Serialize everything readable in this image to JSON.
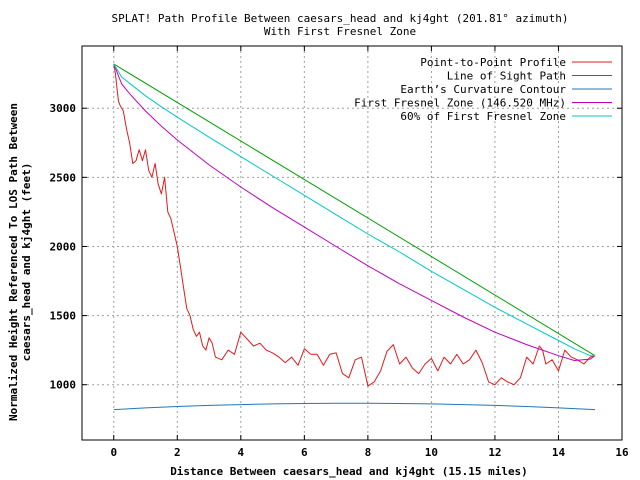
{
  "chart_data": {
    "type": "line",
    "title": "SPLAT! Path Profile Between caesars_head and kj4ght (201.81° azimuth)",
    "subtitle": "With First Fresnel Zone",
    "xlabel": "Distance Between caesars_head and kj4ght (15.15 miles)",
    "ylabel_line1": "Normalized Height Referenced To LOS Path Between",
    "ylabel_line2": "caesars_head and kj4ght (feet)",
    "xlim": [
      -1,
      16
    ],
    "ylim": [
      600,
      3450
    ],
    "x_ticks": [
      0,
      2,
      4,
      6,
      8,
      10,
      12,
      14,
      16
    ],
    "y_ticks": [
      1000,
      1500,
      2000,
      2500,
      3000
    ],
    "grid": true,
    "legend_position": "top-right",
    "series": [
      {
        "name": "Point-to-Point Profile",
        "color": "#e41a1c",
        "x": [
          0,
          0.05,
          0.1,
          0.15,
          0.2,
          0.3,
          0.4,
          0.5,
          0.6,
          0.7,
          0.8,
          0.9,
          1.0,
          1.1,
          1.2,
          1.3,
          1.4,
          1.5,
          1.6,
          1.7,
          1.8,
          1.9,
          2.0,
          2.1,
          2.2,
          2.3,
          2.4,
          2.5,
          2.6,
          2.7,
          2.8,
          2.9,
          3.0,
          3.1,
          3.2,
          3.4,
          3.6,
          3.8,
          4.0,
          4.2,
          4.4,
          4.6,
          4.8,
          5.0,
          5.2,
          5.4,
          5.6,
          5.8,
          6.0,
          6.2,
          6.4,
          6.6,
          6.8,
          7.0,
          7.2,
          7.4,
          7.6,
          7.8,
          8.0,
          8.2,
          8.4,
          8.6,
          8.8,
          9.0,
          9.2,
          9.4,
          9.6,
          9.8,
          10.0,
          10.2,
          10.4,
          10.6,
          10.8,
          11.0,
          11.2,
          11.4,
          11.6,
          11.8,
          12.0,
          12.2,
          12.4,
          12.6,
          12.8,
          13.0,
          13.2,
          13.4,
          13.5,
          13.6,
          13.8,
          14.0,
          14.2,
          14.4,
          14.6,
          14.8,
          15.0,
          15.15
        ],
        "y": [
          3320,
          3250,
          3150,
          3050,
          3020,
          2980,
          2850,
          2750,
          2600,
          2620,
          2700,
          2620,
          2700,
          2550,
          2500,
          2600,
          2450,
          2380,
          2500,
          2250,
          2200,
          2100,
          2000,
          1850,
          1700,
          1550,
          1500,
          1400,
          1350,
          1380,
          1280,
          1250,
          1340,
          1300,
          1200,
          1180,
          1250,
          1220,
          1380,
          1330,
          1280,
          1300,
          1250,
          1230,
          1200,
          1160,
          1200,
          1140,
          1260,
          1220,
          1220,
          1140,
          1220,
          1230,
          1080,
          1050,
          1180,
          1200,
          990,
          1020,
          1100,
          1240,
          1290,
          1150,
          1200,
          1120,
          1080,
          1150,
          1190,
          1100,
          1200,
          1150,
          1220,
          1150,
          1180,
          1250,
          1160,
          1020,
          1000,
          1050,
          1020,
          1000,
          1050,
          1200,
          1150,
          1280,
          1250,
          1150,
          1180,
          1100,
          1250,
          1200,
          1180,
          1150,
          1200,
          1210
        ]
      },
      {
        "name": "Line of Sight Path",
        "color": "#00a000",
        "x": [
          0,
          15.15
        ],
        "y": [
          3320,
          1210
        ]
      },
      {
        "name": "Earth’s Curvature Contour",
        "color": "#1f78b4",
        "x": [
          0,
          1,
          2,
          3,
          4,
          5,
          6,
          7,
          7.575,
          8,
          9,
          10,
          11,
          12,
          13,
          14,
          15.15
        ],
        "y": [
          820,
          832,
          842,
          850,
          856,
          861,
          864,
          866,
          866,
          866,
          864,
          861,
          856,
          850,
          842,
          832,
          820
        ]
      },
      {
        "name": "First Fresnel Zone (146.520 MHz)",
        "color": "#c000c0",
        "x": [
          0,
          0.25,
          0.5,
          1,
          1.5,
          2,
          3,
          4,
          5,
          6,
          7,
          8,
          9,
          10,
          11,
          12,
          13,
          14,
          14.5,
          15.0,
          15.15
        ],
        "y": [
          3320,
          3175,
          3105,
          2980,
          2870,
          2770,
          2590,
          2430,
          2280,
          2140,
          2000,
          1860,
          1730,
          1610,
          1490,
          1380,
          1290,
          1210,
          1175,
          1185,
          1210
        ]
      },
      {
        "name": "60% of First Fresnel Zone",
        "color": "#00c8c8",
        "x": [
          0,
          0.25,
          0.5,
          1,
          1.5,
          2,
          3,
          4,
          5,
          6,
          7,
          8,
          9,
          10,
          11,
          12,
          13,
          14,
          14.5,
          15.0,
          15.15
        ],
        "y": [
          3320,
          3225,
          3180,
          3090,
          3010,
          2935,
          2790,
          2650,
          2510,
          2370,
          2230,
          2090,
          1960,
          1820,
          1690,
          1560,
          1440,
          1320,
          1260,
          1210,
          1210
        ]
      }
    ]
  }
}
